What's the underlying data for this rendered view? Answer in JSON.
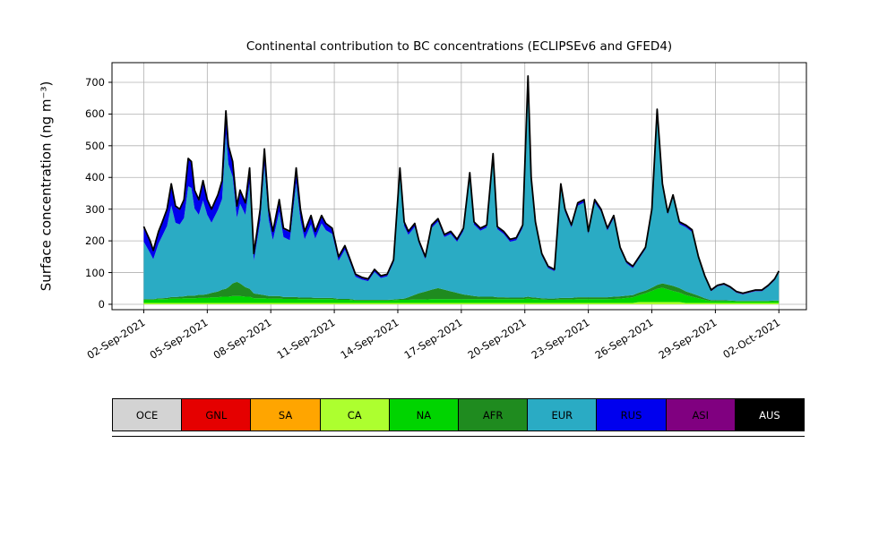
{
  "figure": {
    "background": "#ffffff"
  },
  "chart_data": {
    "type": "area",
    "stacked": true,
    "title": "Continental contribution to BC concentrations (ECLIPSEv6 and GFED4)",
    "ylabel": "Surface concentration (ng m⁻³)",
    "grid": true,
    "legend_position": "bottom",
    "total_line_color": "#000000",
    "ylim": [
      -17,
      762
    ],
    "xlim_days": [
      -1.5,
      31.3
    ],
    "yticks": [
      {
        "value": 0,
        "label": "0"
      },
      {
        "value": 100,
        "label": "100"
      },
      {
        "value": 200,
        "label": "200"
      },
      {
        "value": 300,
        "label": "300"
      },
      {
        "value": 400,
        "label": "400"
      },
      {
        "value": 500,
        "label": "500"
      },
      {
        "value": 600,
        "label": "600"
      },
      {
        "value": 700,
        "label": "700"
      }
    ],
    "xticks": [
      {
        "day": 0,
        "label": "02-Sep-2021"
      },
      {
        "day": 3,
        "label": "05-Sep-2021"
      },
      {
        "day": 6,
        "label": "08-Sep-2021"
      },
      {
        "day": 9,
        "label": "11-Sep-2021"
      },
      {
        "day": 12,
        "label": "14-Sep-2021"
      },
      {
        "day": 15,
        "label": "17-Sep-2021"
      },
      {
        "day": 18,
        "label": "20-Sep-2021"
      },
      {
        "day": 21,
        "label": "23-Sep-2021"
      },
      {
        "day": 24,
        "label": "26-Sep-2021"
      },
      {
        "day": 27,
        "label": "29-Sep-2021"
      },
      {
        "day": 30,
        "label": "02-Oct-2021"
      }
    ],
    "x_days": [
      0,
      0.3,
      0.45,
      0.7,
      0.85,
      1.1,
      1.3,
      1.5,
      1.7,
      1.9,
      2.1,
      2.25,
      2.4,
      2.6,
      2.8,
      3.0,
      3.2,
      3.5,
      3.7,
      3.88,
      4.0,
      4.2,
      4.4,
      4.55,
      4.8,
      5.0,
      5.2,
      5.5,
      5.7,
      5.9,
      6.1,
      6.4,
      6.6,
      6.9,
      7.2,
      7.4,
      7.6,
      7.9,
      8.1,
      8.4,
      8.6,
      8.9,
      9.2,
      9.5,
      9.7,
      10.0,
      10.3,
      10.6,
      10.9,
      11.2,
      11.5,
      11.8,
      12.1,
      12.3,
      12.5,
      12.8,
      13.0,
      13.3,
      13.6,
      13.9,
      14.2,
      14.5,
      14.8,
      15.1,
      15.4,
      15.6,
      15.9,
      16.2,
      16.5,
      16.7,
      17.0,
      17.3,
      17.6,
      17.9,
      18.15,
      18.3,
      18.5,
      18.8,
      19.1,
      19.4,
      19.7,
      19.9,
      20.2,
      20.5,
      20.8,
      21.0,
      21.3,
      21.6,
      21.9,
      22.2,
      22.5,
      22.8,
      23.1,
      23.4,
      23.7,
      24.0,
      24.25,
      24.5,
      24.75,
      25.0,
      25.3,
      25.6,
      25.9,
      26.2,
      26.5,
      26.8,
      27.1,
      27.4,
      27.7,
      28.0,
      28.3,
      28.6,
      28.9,
      29.2,
      29.5,
      29.8,
      30.0
    ],
    "series": [
      {
        "name": "OCE",
        "color": "#d3d3d3",
        "text": "#000000",
        "values": 0
      },
      {
        "name": "GNL",
        "color": "#e50000",
        "text": "#000000",
        "values": 0
      },
      {
        "name": "SA",
        "color": "#ffa500",
        "text": "#000000",
        "values": 0
      },
      {
        "name": "CA",
        "color": "#adff2f",
        "text": "#000000",
        "values": [
          4,
          4,
          4,
          4,
          4,
          4,
          4,
          4,
          4,
          4,
          4,
          4,
          4,
          4,
          4,
          4,
          4,
          4,
          4,
          4,
          4,
          4,
          4,
          4,
          4,
          4,
          4,
          4,
          4,
          4,
          4,
          4,
          4,
          4,
          4,
          4,
          4,
          4,
          4,
          4,
          4,
          4,
          4,
          4,
          4,
          4,
          4,
          4,
          4,
          4,
          4,
          4,
          4,
          4,
          4,
          4,
          4,
          4,
          4,
          4,
          4,
          4,
          4,
          4,
          4,
          4,
          4,
          4,
          4,
          4,
          4,
          4,
          4,
          4,
          4,
          4,
          4,
          4,
          4,
          4,
          4,
          4,
          4,
          4,
          4,
          4,
          4,
          4,
          4,
          4,
          4,
          4,
          4,
          7,
          7,
          7,
          7,
          7,
          7,
          7,
          7,
          4,
          4,
          4,
          4,
          4,
          4,
          4,
          4,
          4,
          4,
          4,
          4,
          4,
          4,
          4,
          4
        ]
      },
      {
        "name": "NA",
        "color": "#00d400",
        "text": "#000000",
        "values": [
          10,
          10,
          10,
          12,
          12,
          12,
          14,
          14,
          14,
          15,
          15,
          15,
          15,
          16,
          16,
          16,
          18,
          18,
          20,
          20,
          20,
          22,
          22,
          22,
          20,
          20,
          15,
          15,
          15,
          14,
          14,
          14,
          13,
          13,
          13,
          12,
          12,
          12,
          12,
          12,
          12,
          12,
          10,
          10,
          10,
          8,
          8,
          8,
          8,
          8,
          8,
          9,
          10,
          10,
          10,
          11,
          11,
          11,
          12,
          12,
          12,
          12,
          12,
          12,
          12,
          12,
          12,
          12,
          12,
          12,
          12,
          12,
          12,
          12,
          14,
          13,
          12,
          11,
          10,
          10,
          11,
          11,
          11,
          12,
          12,
          12,
          12,
          12,
          12,
          13,
          14,
          16,
          18,
          22,
          28,
          35,
          42,
          45,
          40,
          35,
          30,
          25,
          20,
          15,
          10,
          6,
          6,
          6,
          6,
          5,
          5,
          5,
          5,
          5,
          5,
          6,
          6
        ]
      },
      {
        "name": "AFR",
        "color": "#1f8b1f",
        "text": "#000000",
        "values": [
          2,
          2,
          2,
          3,
          3,
          4,
          5,
          5,
          6,
          6,
          8,
          8,
          8,
          10,
          10,
          12,
          14,
          18,
          22,
          25,
          30,
          40,
          45,
          40,
          30,
          25,
          15,
          12,
          10,
          8,
          8,
          8,
          6,
          6,
          6,
          5,
          5,
          5,
          4,
          4,
          4,
          4,
          3,
          3,
          3,
          2,
          2,
          2,
          2,
          2,
          2,
          2,
          3,
          4,
          8,
          15,
          20,
          25,
          30,
          35,
          30,
          25,
          20,
          15,
          12,
          10,
          8,
          8,
          8,
          6,
          6,
          5,
          5,
          5,
          6,
          5,
          5,
          4,
          4,
          4,
          5,
          5,
          5,
          6,
          6,
          6,
          6,
          6,
          6,
          7,
          7,
          7,
          7,
          8,
          8,
          10,
          12,
          14,
          15,
          16,
          14,
          12,
          10,
          8,
          5,
          3,
          3,
          3,
          2,
          2,
          2,
          2,
          2,
          2,
          2,
          2,
          2
        ]
      },
      {
        "name": "EUR",
        "color": "#2aabc4",
        "text": "#000000",
        "values": [
          181,
          146,
          126,
          173,
          193,
          227,
          289,
          234,
          228,
          247,
          345,
          340,
          275,
          252,
          297,
          250,
          221,
          257,
          286,
          488,
          388,
          336,
          201,
          251,
          228,
          333,
          103,
          231,
          408,
          241,
          176,
          266,
          189,
          179,
          359,
          246,
          184,
          231,
          187,
          235,
          214,
          202,
          120,
          155,
          122,
          73,
          64,
          59,
          88,
          69,
          74,
          116,
          395,
          229,
          197,
          214,
          156,
          102,
          195,
          210,
          166,
          181,
          161,
          200,
          374,
          225,
          208,
          218,
          438,
          215,
          200,
          176,
          181,
          220,
          678,
          367,
          231,
          134,
          96,
          86,
          349,
          271,
          222,
          289,
          299,
          200,
          299,
          270,
          210,
          248,
          148,
          102,
          85,
          107,
          131,
          241,
          545,
          306,
          221,
          279,
          202,
          202,
          194,
          117,
          66,
          28,
          43,
          48,
          39,
          25,
          20,
          25,
          30,
          30,
          45,
          63,
          88
        ]
      },
      {
        "name": "RUS",
        "color": "#0000ee",
        "text": "#000000",
        "values": [
          45,
          35,
          25,
          35,
          40,
          50,
          65,
          50,
          45,
          55,
          85,
          80,
          55,
          45,
          60,
          45,
          40,
          45,
          55,
          70,
          55,
          45,
          35,
          40,
          35,
          45,
          20,
          35,
          50,
          30,
          25,
          35,
          25,
          25,
          45,
          30,
          22,
          25,
          20,
          22,
          18,
          15,
          10,
          10,
          8,
          5,
          4,
          4,
          5,
          4,
          4,
          6,
          15,
          10,
          8,
          8,
          6,
          5,
          6,
          6,
          5,
          5,
          5,
          6,
          10,
          6,
          5,
          5,
          10,
          5,
          5,
          5,
          5,
          6,
          15,
          8,
          5,
          4,
          3,
          3,
          8,
          6,
          5,
          6,
          6,
          5,
          6,
          5,
          5,
          5,
          4,
          3,
          3,
          3,
          3,
          4,
          6,
          5,
          4,
          5,
          4,
          4,
          4,
          3,
          2,
          1,
          1,
          1,
          1,
          1,
          1,
          1,
          1,
          1,
          1,
          2,
          2
        ]
      },
      {
        "name": "ASI",
        "color": "#800080",
        "text": "#000000",
        "values": 3
      },
      {
        "name": "AUS",
        "color": "#000000",
        "text": "#ffffff",
        "values": 0
      }
    ]
  }
}
